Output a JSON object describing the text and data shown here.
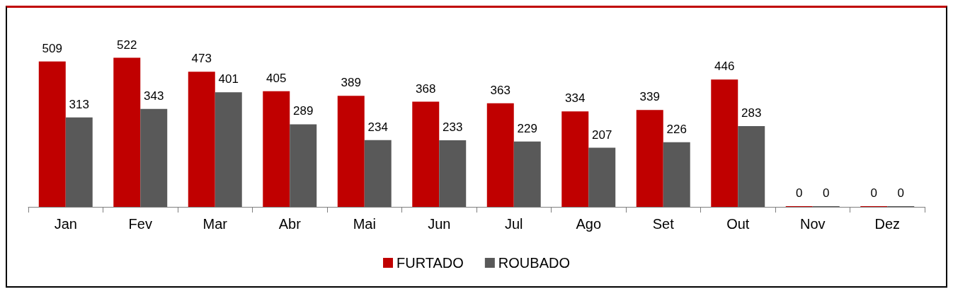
{
  "chart_data": {
    "type": "bar",
    "categories": [
      "Jan",
      "Fev",
      "Mar",
      "Abr",
      "Mai",
      "Jun",
      "Jul",
      "Ago",
      "Set",
      "Out",
      "Nov",
      "Dez"
    ],
    "series": [
      {
        "name": "FURTADO",
        "color": "#c00000",
        "values": [
          509,
          522,
          473,
          405,
          389,
          368,
          363,
          334,
          339,
          446,
          0,
          0
        ]
      },
      {
        "name": "ROUBADO",
        "color": "#595959",
        "values": [
          313,
          343,
          401,
          289,
          234,
          233,
          229,
          207,
          226,
          283,
          0,
          0
        ]
      }
    ],
    "data_labels": true,
    "legend": "bottom",
    "tick_labels": "x"
  }
}
